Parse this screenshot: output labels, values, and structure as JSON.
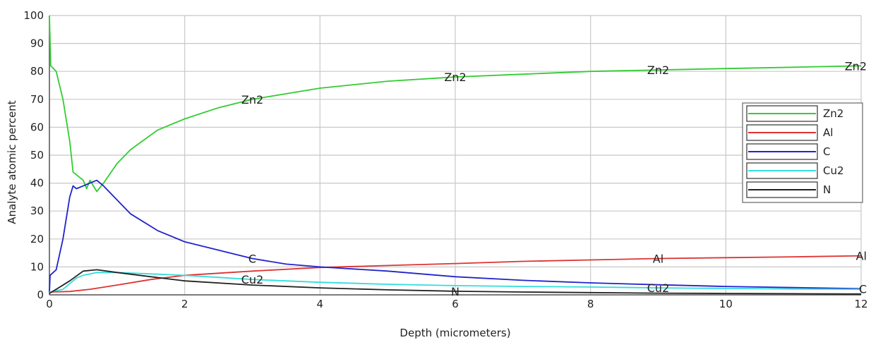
{
  "chart_data": {
    "type": "line",
    "title": "",
    "xlabel": "Depth (micrometers)",
    "ylabel": "Analyte atomic percent",
    "xlim": [
      0,
      12
    ],
    "ylim": [
      0,
      100
    ],
    "xticks": [
      0,
      2,
      4,
      6,
      8,
      10,
      12
    ],
    "yticks": [
      0,
      10,
      20,
      30,
      40,
      50,
      60,
      70,
      80,
      90,
      100
    ],
    "grid": true,
    "legend_position": "right",
    "series": [
      {
        "name": "Zn2",
        "color": "#33cc33",
        "points": [
          [
            0,
            100
          ],
          [
            0.02,
            82
          ],
          [
            0.1,
            80
          ],
          [
            0.2,
            70
          ],
          [
            0.3,
            55
          ],
          [
            0.35,
            44
          ],
          [
            0.45,
            42
          ],
          [
            0.5,
            41
          ],
          [
            0.55,
            38
          ],
          [
            0.6,
            41
          ],
          [
            0.7,
            37
          ],
          [
            0.8,
            40
          ],
          [
            1.0,
            47
          ],
          [
            1.2,
            52
          ],
          [
            1.6,
            59
          ],
          [
            2.0,
            63
          ],
          [
            2.5,
            67
          ],
          [
            3.0,
            70
          ],
          [
            3.5,
            72
          ],
          [
            4.0,
            74
          ],
          [
            5.0,
            76.5
          ],
          [
            6.0,
            78
          ],
          [
            7.0,
            79
          ],
          [
            8.0,
            80
          ],
          [
            9.0,
            80.5
          ],
          [
            10.0,
            81
          ],
          [
            11.0,
            81.5
          ],
          [
            12.0,
            82
          ]
        ],
        "labels_at_x": [
          3.0,
          6.0,
          9.0,
          12.0
        ]
      },
      {
        "name": "Al",
        "color": "#dd3333",
        "points": [
          [
            0,
            1
          ],
          [
            0.3,
            1.2
          ],
          [
            0.6,
            2
          ],
          [
            1.0,
            3.5
          ],
          [
            1.5,
            5.5
          ],
          [
            2.0,
            7
          ],
          [
            3.0,
            8.5
          ],
          [
            4.0,
            9.8
          ],
          [
            5.0,
            10.5
          ],
          [
            6.0,
            11.2
          ],
          [
            7.0,
            12
          ],
          [
            8.0,
            12.5
          ],
          [
            9.0,
            13
          ],
          [
            10.0,
            13.3
          ],
          [
            11.0,
            13.6
          ],
          [
            12.0,
            14
          ]
        ],
        "labels_at_x": [
          9.0,
          12.0
        ]
      },
      {
        "name": "C",
        "color": "#2222cc",
        "points": [
          [
            0,
            1
          ],
          [
            0.01,
            7
          ],
          [
            0.1,
            9
          ],
          [
            0.2,
            20
          ],
          [
            0.3,
            35
          ],
          [
            0.35,
            39
          ],
          [
            0.4,
            38
          ],
          [
            0.5,
            39
          ],
          [
            0.6,
            40
          ],
          [
            0.7,
            41
          ],
          [
            0.8,
            39
          ],
          [
            1.0,
            34
          ],
          [
            1.2,
            29
          ],
          [
            1.6,
            23
          ],
          [
            2.0,
            19
          ],
          [
            2.5,
            16
          ],
          [
            3.0,
            13
          ],
          [
            3.5,
            11
          ],
          [
            4.0,
            10
          ],
          [
            5.0,
            8.5
          ],
          [
            6.0,
            6.5
          ],
          [
            7.0,
            5.2
          ],
          [
            8.0,
            4.3
          ],
          [
            9.0,
            3.6
          ],
          [
            10.0,
            3.0
          ],
          [
            11.0,
            2.6
          ],
          [
            12.0,
            2.2
          ]
        ],
        "labels_at_x": [
          3.0,
          12.0
        ]
      },
      {
        "name": "Cu2",
        "color": "#33dddd",
        "points": [
          [
            0,
            1
          ],
          [
            0.2,
            2
          ],
          [
            0.4,
            6
          ],
          [
            0.5,
            7
          ],
          [
            0.7,
            8
          ],
          [
            1.0,
            8
          ],
          [
            1.5,
            7.5
          ],
          [
            2.0,
            7
          ],
          [
            3.0,
            5.5
          ],
          [
            4.0,
            4.5
          ],
          [
            5.0,
            3.8
          ],
          [
            6.0,
            3.3
          ],
          [
            7.0,
            3.0
          ],
          [
            8.0,
            2.8
          ],
          [
            9.0,
            2.5
          ],
          [
            10.0,
            2.3
          ],
          [
            11.0,
            2.1
          ],
          [
            12.0,
            2.0
          ]
        ],
        "labels_at_x": [
          3.0,
          9.0
        ]
      },
      {
        "name": "N",
        "color": "#222222",
        "points": [
          [
            0,
            0.5
          ],
          [
            0.1,
            2
          ],
          [
            0.3,
            5
          ],
          [
            0.5,
            8.5
          ],
          [
            0.7,
            9
          ],
          [
            1.0,
            8
          ],
          [
            1.5,
            6.5
          ],
          [
            2.0,
            5
          ],
          [
            3.0,
            3.5
          ],
          [
            4.0,
            2.5
          ],
          [
            5.0,
            1.8
          ],
          [
            6.0,
            1.3
          ],
          [
            7.0,
            1.0
          ],
          [
            8.0,
            0.8
          ],
          [
            9.0,
            0.6
          ],
          [
            10.0,
            0.5
          ],
          [
            11.0,
            0.4
          ],
          [
            12.0,
            0.3
          ]
        ],
        "labels_at_x": [
          6.0
        ]
      }
    ]
  }
}
